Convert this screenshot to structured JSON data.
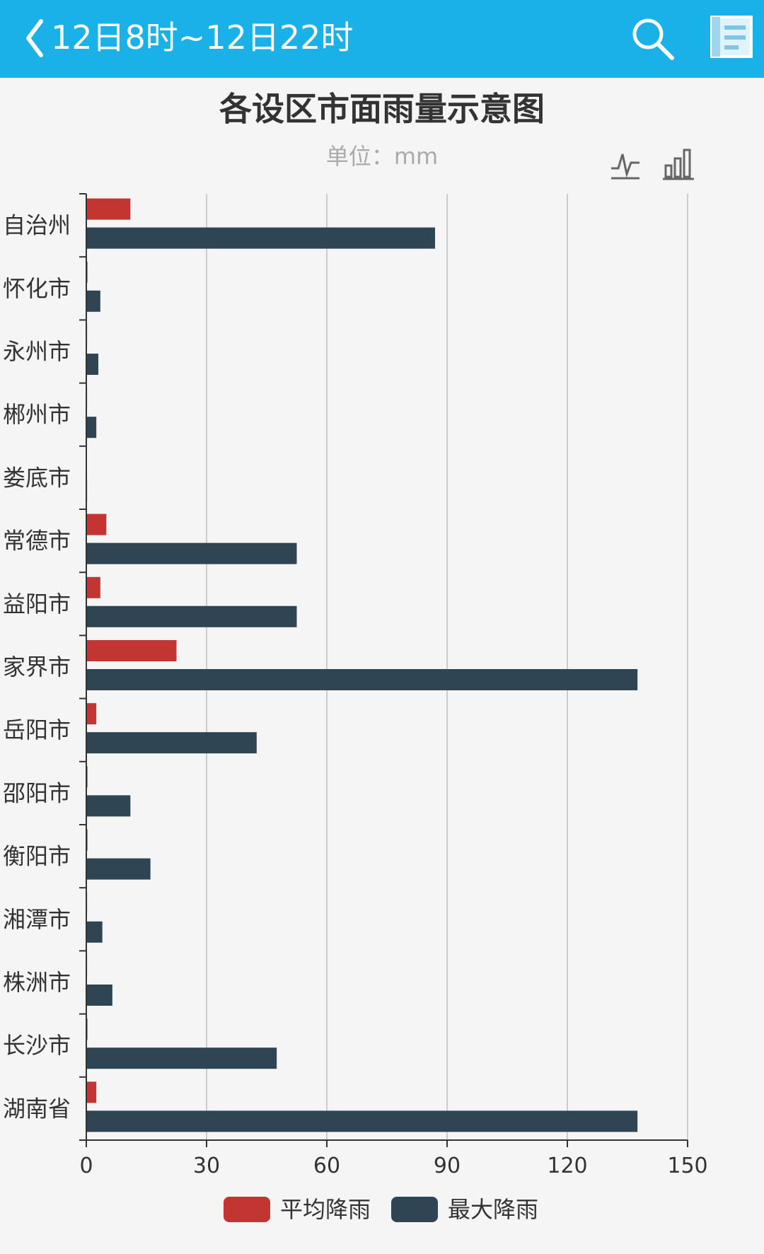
{
  "header": {
    "time_range": "12日8时~12日22时",
    "back_icon": "chevron-left-icon",
    "search_icon": "search-icon",
    "calendar_icon": "calendar-icon"
  },
  "toolbox": {
    "line_icon": "line-chart-icon",
    "bar_icon": "bar-chart-icon"
  },
  "colors": {
    "header_bg": "#1ab0e8",
    "avg": "#c23531",
    "max": "#2f4554"
  },
  "chart_data": {
    "type": "bar",
    "orientation": "horizontal",
    "title": "各设区市面雨量示意图",
    "subtitle": "单位：mm",
    "categories": [
      "自治州",
      "怀化市",
      "永州市",
      "郴州市",
      "娄底市",
      "常德市",
      "益阳市",
      "家界市",
      "岳阳市",
      "邵阳市",
      "衡阳市",
      "湘潭市",
      "株洲市",
      "长沙市",
      "湖南省"
    ],
    "series": [
      {
        "name": "平均降雨",
        "values": [
          11,
          0.3,
          0.2,
          0.2,
          0.1,
          5,
          3.5,
          22.5,
          2.5,
          0.3,
          0.3,
          0.2,
          0.2,
          0.3,
          2.5
        ]
      },
      {
        "name": "最大降雨",
        "values": [
          87,
          3.5,
          3,
          2.5,
          0.2,
          52.5,
          52.5,
          137.5,
          42.5,
          11,
          16,
          4,
          6.5,
          47.5,
          137.5
        ]
      }
    ],
    "xlim": [
      0,
      150
    ],
    "xticks": [
      0,
      30,
      60,
      90,
      120,
      150
    ],
    "grid": true,
    "legend_position": "bottom-center"
  }
}
